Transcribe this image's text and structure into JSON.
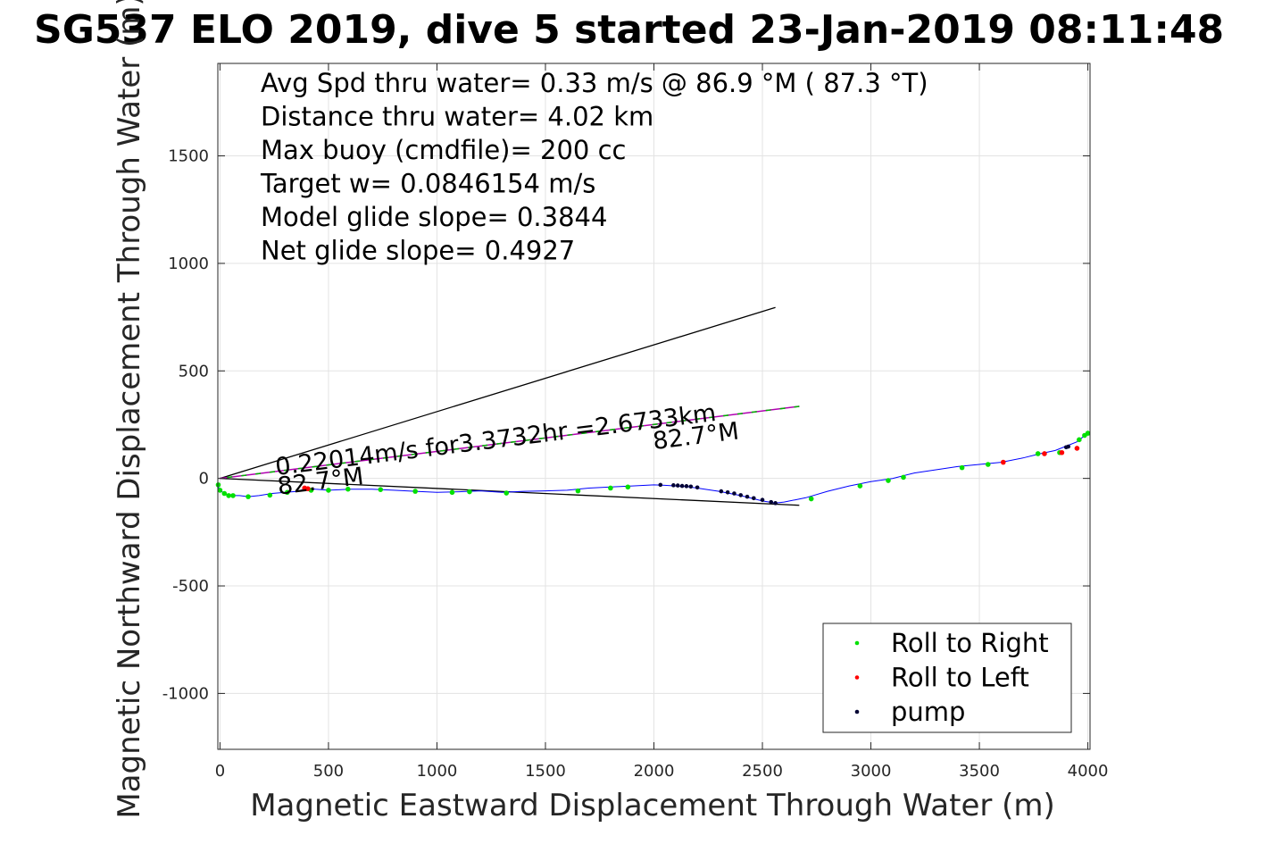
{
  "chart_data": {
    "type": "line",
    "title": "SG537 ELO 2019, dive 5 started 23-Jan-2019 08:11:48",
    "xlabel": "Magnetic Eastward Displacement Through Water (m)",
    "ylabel": "Magnetic Northward Displacement Through Water (m)",
    "xlim": [
      -10,
      4010
    ],
    "ylim": [
      -1260,
      1930
    ],
    "xticks": [
      0,
      500,
      1000,
      1500,
      2000,
      2500,
      3000,
      3500,
      4000
    ],
    "xtick_labels": [
      "0",
      "500",
      "1000",
      "1500",
      "2000",
      "2500",
      "3000",
      "3500",
      "4000"
    ],
    "yticks": [
      -1000,
      -500,
      0,
      500,
      1000,
      1500
    ],
    "ytick_labels": [
      "-1000",
      "-500",
      "0",
      "500",
      "1000",
      "1500"
    ],
    "grid": true,
    "stats": [
      "Avg Spd thru water=  0.33 m/s @  86.9 °M ( 87.3 °T)",
      "Distance thru water=  4.02 km",
      "Max buoy (cmdfile)= 200 cc",
      "Target w= 0.0846154 m/s",
      "Model glide slope= 0.3844",
      "Net glide slope= 0.4927"
    ],
    "track": {
      "x": [
        -10,
        -8,
        0,
        20,
        50,
        90,
        130,
        180,
        240,
        300,
        360,
        400,
        440,
        500,
        600,
        700,
        800,
        900,
        1000,
        1100,
        1200,
        1300,
        1400,
        1500,
        1600,
        1700,
        1800,
        1900,
        2000,
        2050,
        2100,
        2150,
        2200,
        2300,
        2400,
        2500,
        2560,
        2600,
        2650,
        2700,
        2800,
        2900,
        3000,
        3100,
        3200,
        3300,
        3400,
        3500,
        3600,
        3700,
        3780,
        3850,
        3900,
        3950,
        3980,
        4000
      ],
      "y": [
        -30,
        -40,
        -55,
        -70,
        -80,
        -80,
        -85,
        -80,
        -70,
        -65,
        -60,
        -45,
        -50,
        -55,
        -50,
        -50,
        -55,
        -60,
        -65,
        -62,
        -58,
        -65,
        -60,
        -58,
        -55,
        -45,
        -40,
        -35,
        -30,
        -32,
        -35,
        -38,
        -45,
        -60,
        -80,
        -105,
        -115,
        -110,
        -100,
        -90,
        -60,
        -35,
        -15,
        0,
        25,
        40,
        55,
        65,
        75,
        95,
        115,
        130,
        150,
        170,
        195,
        210
      ]
    },
    "current_line": {
      "x": [
        0,
        2670
      ],
      "y": [
        0,
        335
      ]
    },
    "model_glide_line": {
      "x": [
        0,
        2560
      ],
      "y": [
        0,
        795
      ]
    },
    "net_glide_line": {
      "x": [
        0,
        2670
      ],
      "y": [
        0,
        -125
      ]
    },
    "current_annotation": {
      "text": "0.22014m/s for3.3732hr =2.6733km",
      "x": 260,
      "y": 15
    },
    "heading_annotations": [
      {
        "text": "82.7°M",
        "x": 270,
        "y": -75
      },
      {
        "text": "82.7°M",
        "x": 2000,
        "y": 135
      }
    ],
    "series": [
      {
        "name": "Roll to Right",
        "color": "#00e000",
        "x": [
          -8,
          0,
          20,
          40,
          60,
          130,
          230,
          310,
          420,
          500,
          590,
          740,
          900,
          1070,
          1150,
          1320,
          1650,
          1800,
          1880,
          2725,
          2950,
          3080,
          3150,
          3420,
          3540,
          3770,
          3870,
          3960,
          3985,
          4000
        ],
        "y": [
          -30,
          -55,
          -70,
          -80,
          -80,
          -85,
          -78,
          -65,
          -55,
          -55,
          -50,
          -52,
          -60,
          -65,
          -62,
          -68,
          -58,
          -45,
          -40,
          -95,
          -35,
          -10,
          5,
          50,
          65,
          115,
          120,
          180,
          200,
          210
        ]
      },
      {
        "name": "Roll to Left",
        "color": "#ff0000",
        "x": [
          390,
          405,
          3610,
          3800,
          3880,
          3950
        ],
        "y": [
          -45,
          -48,
          75,
          115,
          120,
          140
        ]
      },
      {
        "name": "pump",
        "color": "#000033",
        "x": [
          2030,
          2090,
          2110,
          2130,
          2150,
          2170,
          2200,
          2310,
          2340,
          2370,
          2400,
          2430,
          2460,
          2500,
          2540,
          2560,
          3900,
          3910
        ],
        "y": [
          -30,
          -32,
          -33,
          -35,
          -36,
          -38,
          -42,
          -60,
          -65,
          -70,
          -78,
          -85,
          -92,
          -100,
          -110,
          -115,
          145,
          148
        ]
      }
    ],
    "legend": {
      "location": "bottom-right",
      "entries": [
        "Roll to Right",
        "Roll to Left",
        "pump"
      ]
    }
  }
}
